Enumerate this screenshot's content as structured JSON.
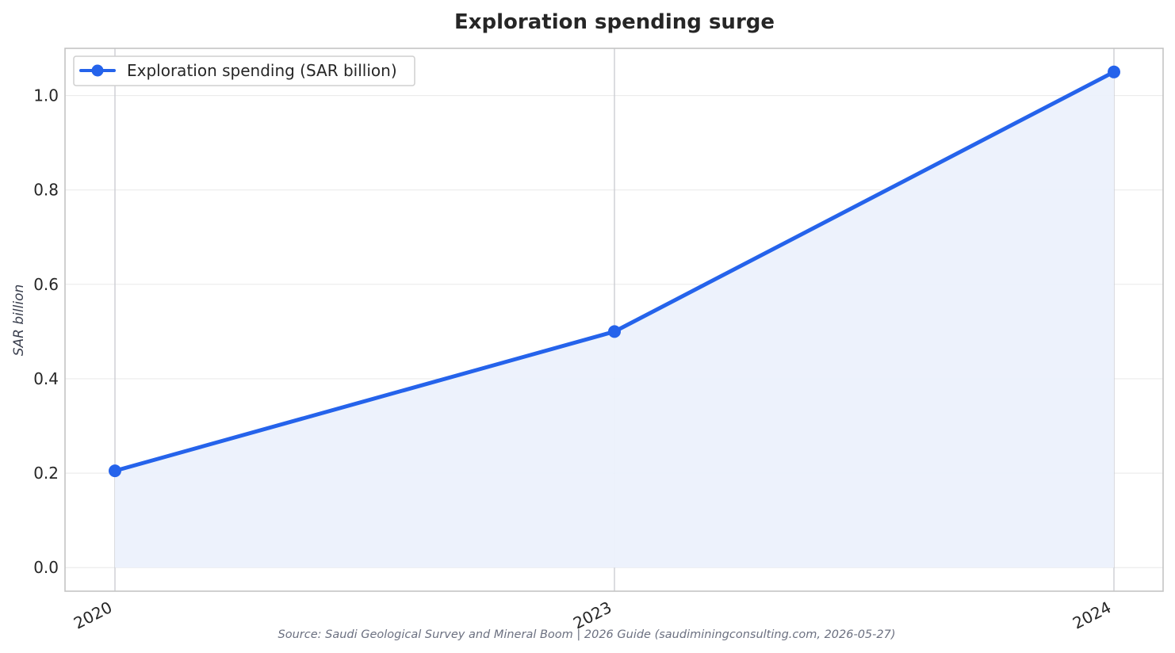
{
  "chart_data": {
    "type": "line",
    "title": "Exploration spending surge",
    "ylabel": "SAR billion",
    "xlabel": "",
    "categories": [
      "2020",
      "2023",
      "2024"
    ],
    "series": [
      {
        "name": "Exploration spending (SAR billion)",
        "values": [
          0.205,
          0.5,
          1.05
        ]
      }
    ],
    "ylim": [
      -0.05,
      1.1
    ],
    "yticks": [
      "0.0",
      "0.2",
      "0.4",
      "0.6",
      "0.8",
      "1.0"
    ],
    "area_fill": true,
    "grid": true,
    "legend_position": "top-left",
    "source": "Source: Saudi Geological Survey and Mineral Boom | 2026 Guide (saudiminingconsulting.com, 2026-05-27)",
    "colors": {
      "line": "#2563eb",
      "fill": "#ecf1fc",
      "grid": "#ebebeb",
      "vgrid": "#c8cad0",
      "frame": "#c4c4c4"
    }
  }
}
